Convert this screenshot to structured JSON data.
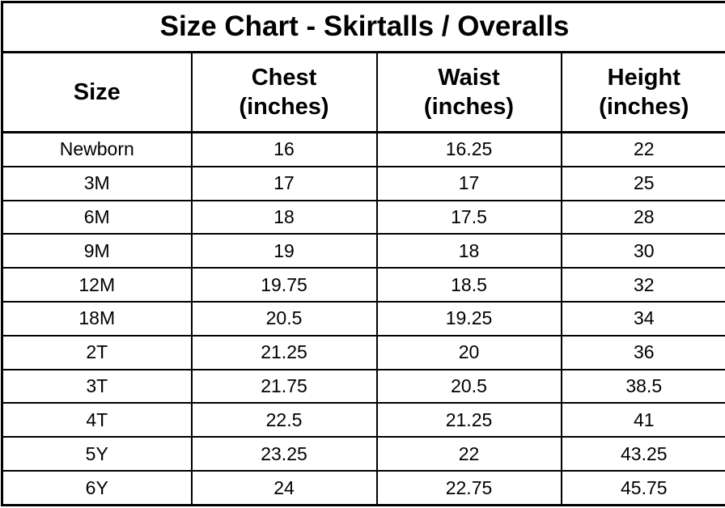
{
  "chart_data": {
    "type": "table",
    "title": "Size Chart - Skirtalls / Overalls",
    "columns": [
      {
        "label": "Size",
        "sub": ""
      },
      {
        "label": "Chest",
        "sub": "(inches)"
      },
      {
        "label": "Waist",
        "sub": "(inches)"
      },
      {
        "label": "Height",
        "sub": "(inches)"
      }
    ],
    "rows": [
      [
        "Newborn",
        "16",
        "16.25",
        "22"
      ],
      [
        "3M",
        "17",
        "17",
        "25"
      ],
      [
        "6M",
        "18",
        "17.5",
        "28"
      ],
      [
        "9M",
        "19",
        "18",
        "30"
      ],
      [
        "12M",
        "19.75",
        "18.5",
        "32"
      ],
      [
        "18M",
        "20.5",
        "19.25",
        "34"
      ],
      [
        "2T",
        "21.25",
        "20",
        "36"
      ],
      [
        "3T",
        "21.75",
        "20.5",
        "38.5"
      ],
      [
        "4T",
        "22.5",
        "21.25",
        "41"
      ],
      [
        "5Y",
        "23.25",
        "22",
        "43.25"
      ],
      [
        "6Y",
        "24",
        "22.75",
        "45.75"
      ]
    ],
    "colors": {
      "border": "#000000",
      "background": "#ffffff",
      "text": "#000000"
    },
    "layout": {
      "grid": "on",
      "header_rows": 2
    }
  }
}
